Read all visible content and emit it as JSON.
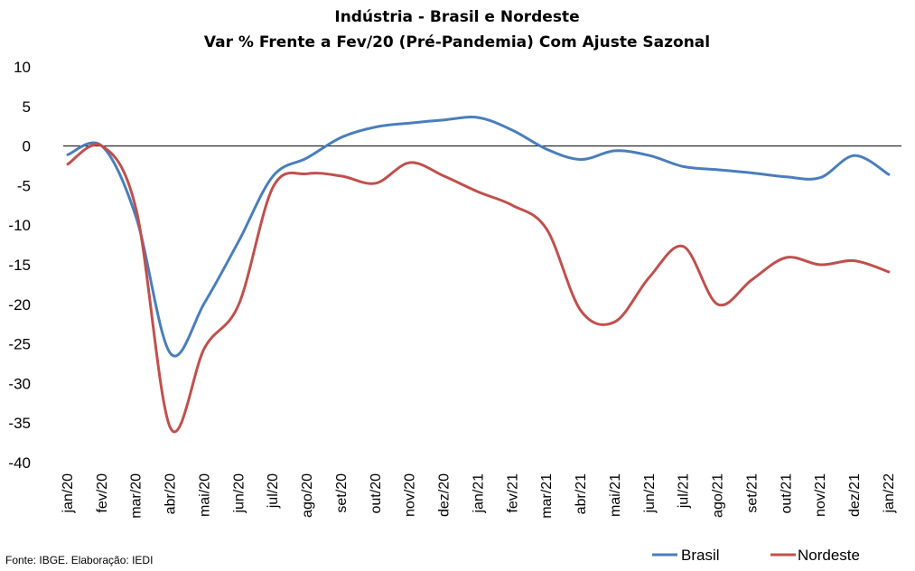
{
  "chart_data": {
    "type": "line",
    "title": "Indústria - Brasil e Nordeste",
    "subtitle": "Var % Frente a Fev/20 (Pré-Pandemia) Com Ajuste Sazonal",
    "categories": [
      "jan/20",
      "fev/20",
      "mar/20",
      "abr/20",
      "mai/20",
      "jun/20",
      "jul/20",
      "ago/20",
      "set/20",
      "out/20",
      "nov/20",
      "dez/20",
      "jan/21",
      "fev/21",
      "mar/21",
      "abr/21",
      "mai/21",
      "jun/21",
      "jul/21",
      "ago/21",
      "set/21",
      "out/21",
      "nov/21",
      "dez/21",
      "jan/22"
    ],
    "series": [
      {
        "name": "Brasil",
        "color": "#4a7ebb",
        "values": [
          -1.1,
          0.0,
          -9.0,
          -26.2,
          -19.8,
          -12.0,
          -3.8,
          -1.5,
          1.1,
          2.4,
          2.9,
          3.3,
          3.6,
          2.0,
          -0.4,
          -1.7,
          -0.6,
          -1.2,
          -2.6,
          -3.0,
          -3.4,
          -3.9,
          -4.0,
          -1.2,
          -3.6
        ]
      },
      {
        "name": "Nordeste",
        "color": "#c0504d",
        "values": [
          -2.3,
          0.0,
          -8.0,
          -35.6,
          -25.5,
          -20.0,
          -5.2,
          -3.5,
          -3.8,
          -4.7,
          -2.1,
          -3.8,
          -5.8,
          -7.5,
          -10.5,
          -20.8,
          -22.2,
          -16.6,
          -12.7,
          -20.0,
          -16.9,
          -14.1,
          -15.0,
          -14.5,
          -15.9
        ]
      }
    ],
    "ylim": [
      -40,
      10
    ],
    "yticks": [
      10,
      5,
      0,
      -5,
      -10,
      -15,
      -20,
      -25,
      -30,
      -35,
      -40
    ],
    "xlabel": "",
    "ylabel": "",
    "legend_position": "bottom-right",
    "grid": false
  },
  "source_note": "Fonte: IBGE. Elaboração: IEDI"
}
